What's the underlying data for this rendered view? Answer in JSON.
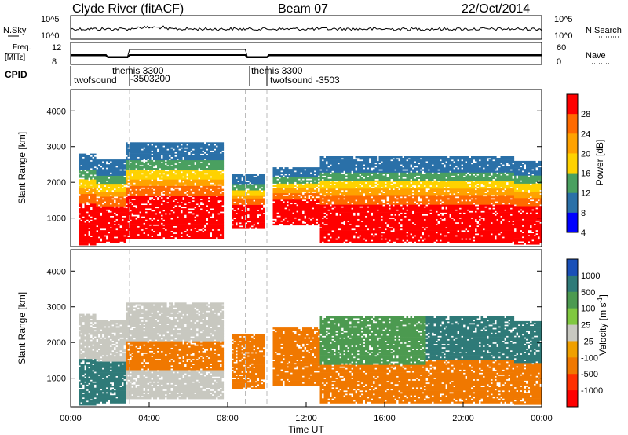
{
  "header": {
    "station": "Clyde River (fitACF)",
    "beam": "Beam 07",
    "date": "22/Oct/2014"
  },
  "chart_data": [
    {
      "type": "line",
      "name": "noise",
      "left_label": "N.Sky",
      "right_label": "N.Search",
      "left_ticks": [
        "10^5",
        "10^0"
      ],
      "right_ticks": [
        "10^5",
        "10^0"
      ]
    },
    {
      "type": "line",
      "name": "frequency-nave",
      "left_label_line1": "Freq.",
      "left_label_line2": "[MHz]",
      "right_label": "Nave",
      "left_ticks": [
        "12",
        "8"
      ],
      "right_ticks": [
        "60",
        "0"
      ]
    },
    {
      "type": "table",
      "name": "cpid",
      "label": "CPID",
      "entries": [
        {
          "text": "twofsound",
          "start_hour": 0.0
        },
        {
          "text": "themis 3300",
          "start_hour": 3.0
        },
        {
          "text": "-3503200",
          "start_hour": 3.0
        },
        {
          "text": "themis 3300",
          "start_hour": 8.9
        },
        {
          "text": "twofsound -3503",
          "start_hour": 10.0
        }
      ]
    },
    {
      "type": "heatmap",
      "name": "power",
      "ylabel": "Slant Range [km]",
      "yticks": [
        1000,
        2000,
        3000,
        4000
      ],
      "ylim": [
        200,
        4600
      ],
      "colorbar_label": "Power [dB]",
      "colorbar_ticks": [
        "28",
        "24",
        "20",
        "16",
        "12",
        "8",
        "4"
      ],
      "colors": [
        "#ff0000",
        "#ff6a00",
        "#ffa200",
        "#ffd200",
        "#4aa060",
        "#2a70a8",
        "#0000ff"
      ]
    },
    {
      "type": "heatmap",
      "name": "velocity",
      "ylabel": "Slant Range [km]",
      "yticks": [
        1000,
        2000,
        3000,
        4000
      ],
      "ylim": [
        200,
        4600
      ],
      "colorbar_label": "Velocity [m s-1]",
      "colorbar_ticks": [
        "1000",
        "500",
        "100",
        "25",
        "-25",
        "-100",
        "-500",
        "-1000"
      ],
      "colors": [
        "#1a50b8",
        "#2f7a78",
        "#4c9a50",
        "#80c840",
        "#c8c8c0",
        "#f0a000",
        "#f07800",
        "#ff3000",
        "#ff0000"
      ]
    }
  ],
  "xaxis": {
    "label": "Time UT",
    "ticks": [
      "00:00",
      "04:00",
      "08:00",
      "12:00",
      "16:00",
      "20:00",
      "00:00"
    ],
    "xlim": [
      0,
      24
    ]
  }
}
